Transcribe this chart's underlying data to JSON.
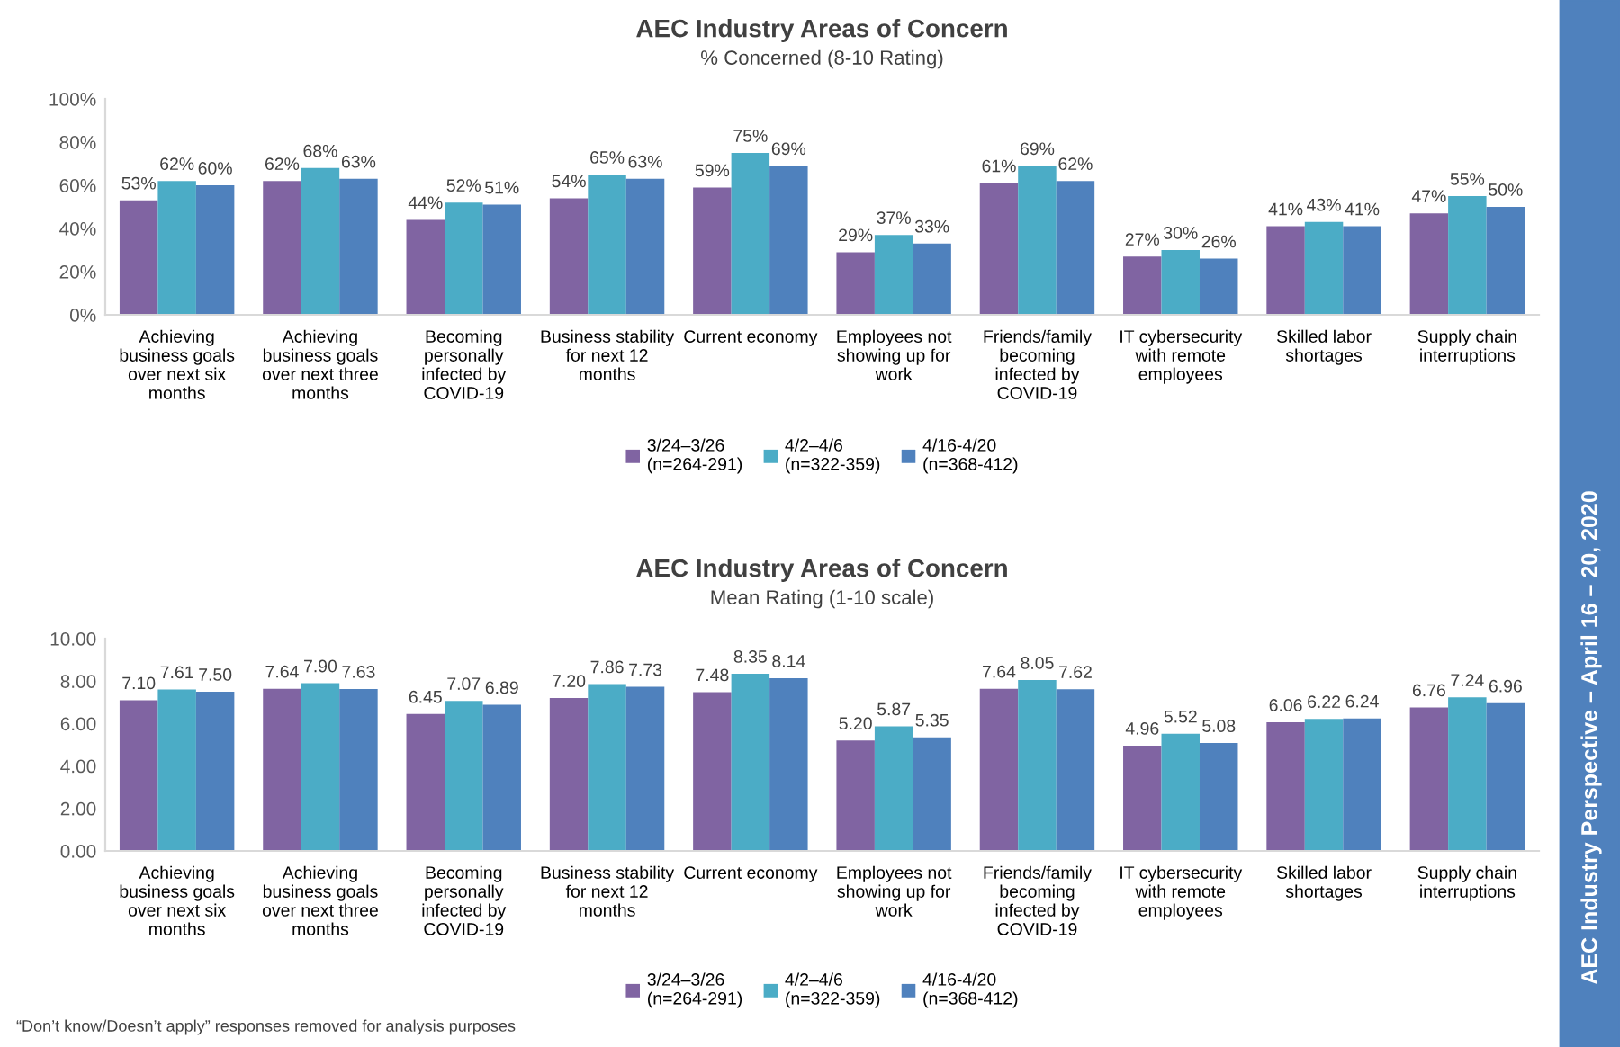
{
  "chart_data": [
    {
      "type": "bar",
      "title": "AEC Industry Areas of Concern",
      "subtitle": "% Concerned (8-10 Rating)",
      "categories": [
        "Achieving\nbusiness goals\nover next six\nmonths",
        "Achieving\nbusiness goals\nover next three\nmonths",
        "Becoming\npersonally\ninfected by\nCOVID-19",
        "Business stability\nfor next 12\nmonths",
        "Current economy",
        "Employees not\nshowing up for\nwork",
        "Friends/family\nbecoming\ninfected by\nCOVID-19",
        "IT cybersecurity\nwith remote\nemployees",
        "Skilled labor\nshortages",
        "Supply chain\ninterruptions"
      ],
      "series": [
        {
          "name": "3/24–3/26\n(n=264-291)",
          "color": "#8064a2",
          "values": [
            53,
            62,
            44,
            54,
            59,
            29,
            61,
            27,
            41,
            47
          ],
          "value_labels": [
            "53%",
            "62%",
            "44%",
            "54%",
            "59%",
            "29%",
            "61%",
            "27%",
            "41%",
            "47%"
          ]
        },
        {
          "name": "4/2–4/6\n(n=322-359)",
          "color": "#4bacc6",
          "values": [
            62,
            68,
            52,
            65,
            75,
            37,
            69,
            30,
            43,
            55
          ],
          "value_labels": [
            "62%",
            "68%",
            "52%",
            "65%",
            "75%",
            "37%",
            "69%",
            "30%",
            "43%",
            "55%"
          ]
        },
        {
          "name": "4/16-4/20\n(n=368-412)",
          "color": "#4f81bd",
          "values": [
            60,
            63,
            51,
            63,
            69,
            33,
            62,
            26,
            41,
            50
          ],
          "value_labels": [
            "60%",
            "63%",
            "51%",
            "63%",
            "69%",
            "33%",
            "62%",
            "26%",
            "41%",
            "50%"
          ]
        }
      ],
      "ylim": [
        0,
        100
      ],
      "yticks": [
        {
          "value": 0,
          "label": "0%"
        },
        {
          "value": 20,
          "label": "20%"
        },
        {
          "value": 40,
          "label": "40%"
        },
        {
          "value": 60,
          "label": "60%"
        },
        {
          "value": 80,
          "label": "80%"
        },
        {
          "value": 100,
          "label": "100%"
        }
      ],
      "grid": false,
      "legend": "bottom"
    },
    {
      "type": "bar",
      "title": "AEC Industry Areas of Concern",
      "subtitle": "Mean Rating (1-10 scale)",
      "categories": [
        "Achieving\nbusiness goals\nover next six\nmonths",
        "Achieving\nbusiness goals\nover next three\nmonths",
        "Becoming\npersonally\ninfected by\nCOVID-19",
        "Business stability\nfor next 12\nmonths",
        "Current economy",
        "Employees not\nshowing up for\nwork",
        "Friends/family\nbecoming\ninfected by\nCOVID-19",
        "IT cybersecurity\nwith remote\nemployees",
        "Skilled labor\nshortages",
        "Supply chain\ninterruptions"
      ],
      "series": [
        {
          "name": "3/24–3/26\n(n=264-291)",
          "color": "#8064a2",
          "values": [
            7.1,
            7.64,
            6.45,
            7.2,
            7.48,
            5.2,
            7.64,
            4.96,
            6.06,
            6.76
          ],
          "value_labels": [
            "7.10",
            "7.64",
            "6.45",
            "7.20",
            "7.48",
            "5.20",
            "7.64",
            "4.96",
            "6.06",
            "6.76"
          ]
        },
        {
          "name": "4/2–4/6\n(n=322-359)",
          "color": "#4bacc6",
          "values": [
            7.61,
            7.9,
            7.07,
            7.86,
            8.35,
            5.87,
            8.05,
            5.52,
            6.22,
            7.24
          ],
          "value_labels": [
            "7.61",
            "7.90",
            "7.07",
            "7.86",
            "8.35",
            "5.87",
            "8.05",
            "5.52",
            "6.22",
            "7.24"
          ]
        },
        {
          "name": "4/16-4/20\n(n=368-412)",
          "color": "#4f81bd",
          "values": [
            7.5,
            7.63,
            6.89,
            7.73,
            8.14,
            5.35,
            7.62,
            5.08,
            6.24,
            6.96
          ],
          "value_labels": [
            "7.50",
            "7.63",
            "6.89",
            "7.73",
            "8.14",
            "5.35",
            "7.62",
            "5.08",
            "6.24",
            "6.96"
          ]
        }
      ],
      "ylim": [
        0,
        10
      ],
      "yticks": [
        {
          "value": 0,
          "label": "0.00"
        },
        {
          "value": 2,
          "label": "2.00"
        },
        {
          "value": 4,
          "label": "4.00"
        },
        {
          "value": 6,
          "label": "6.00"
        },
        {
          "value": 8,
          "label": "8.00"
        },
        {
          "value": 10,
          "label": "10.00"
        }
      ],
      "grid": false,
      "legend": "bottom",
      "annotations": [
        "“Don’t know/Doesn’t apply” responses removed for analysis purposes",
        "AEC Industry Perspective – April 16 – 20, 2020"
      ]
    }
  ]
}
